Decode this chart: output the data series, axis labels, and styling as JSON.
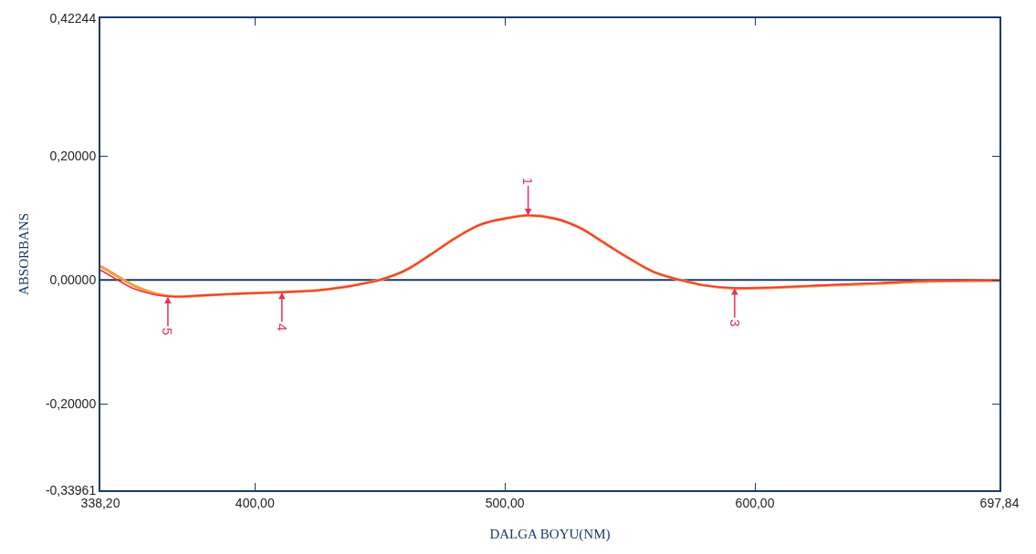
{
  "chart_data": {
    "type": "line",
    "xlabel": "DALGA BOYU(NM)",
    "ylabel": "ABSORBANS",
    "xlim": [
      338.2,
      697.84
    ],
    "xticks": [
      {
        "value": 338.2,
        "label": "338,20"
      },
      {
        "value": 400,
        "label": "400,00"
      },
      {
        "value": 500,
        "label": "500,00"
      },
      {
        "value": 600,
        "label": "600,00"
      },
      {
        "value": 697.84,
        "label": "697,84"
      }
    ],
    "ylim": [
      -0.33961,
      0.42244
    ],
    "yticks": [
      {
        "value": -0.33961,
        "label": "-0,33961"
      },
      {
        "value": -0.2,
        "label": "-0,20000"
      },
      {
        "value": 0,
        "label": "0,00000"
      },
      {
        "value": 0.2,
        "label": "0,20000"
      },
      {
        "value": 0.42244,
        "label": "0,42244"
      }
    ],
    "grid": false,
    "marker": "none",
    "line_style": "solid",
    "x": [
      338.2,
      345,
      352,
      360,
      368,
      380,
      395,
      410,
      425,
      435,
      442,
      450,
      460,
      470,
      480,
      490,
      500,
      509,
      520,
      530,
      540,
      550,
      560,
      570,
      580,
      592,
      610,
      630,
      650,
      665,
      680,
      697.84
    ],
    "series": [
      {
        "color": "#f0a040",
        "values": [
          0.022,
          0.006,
          -0.01,
          -0.022,
          -0.027,
          -0.025,
          -0.022,
          -0.02,
          -0.017,
          -0.012,
          -0.007,
          0.0,
          0.015,
          0.04,
          0.067,
          0.089,
          0.099,
          0.104,
          0.099,
          0.084,
          0.059,
          0.034,
          0.012,
          0.0,
          -0.009,
          -0.014,
          -0.012,
          -0.009,
          -0.006,
          -0.003,
          -0.002,
          -0.001
        ]
      },
      {
        "color": "#f0304a",
        "values": [
          0.016,
          0.0,
          -0.015,
          -0.024,
          -0.027,
          -0.025,
          -0.022,
          -0.02,
          -0.017,
          -0.012,
          -0.007,
          0.0,
          0.015,
          0.04,
          0.067,
          0.089,
          0.099,
          0.104,
          0.099,
          0.084,
          0.059,
          0.034,
          0.012,
          0.0,
          -0.009,
          -0.013,
          -0.012,
          -0.008,
          -0.005,
          -0.002,
          -0.001,
          -0.001
        ]
      }
    ],
    "ref_lines": [
      {
        "axis": "y",
        "value": 0,
        "color": "#1a3a6a"
      }
    ],
    "annotations": [
      {
        "text": "1",
        "x": 509.3,
        "y": 0.104
      },
      {
        "text": "3",
        "x": 591.9,
        "y": -0.013
      },
      {
        "text": "4",
        "x": 410.8,
        "y": -0.02
      },
      {
        "text": "5",
        "x": 365.2,
        "y": -0.027
      }
    ]
  }
}
